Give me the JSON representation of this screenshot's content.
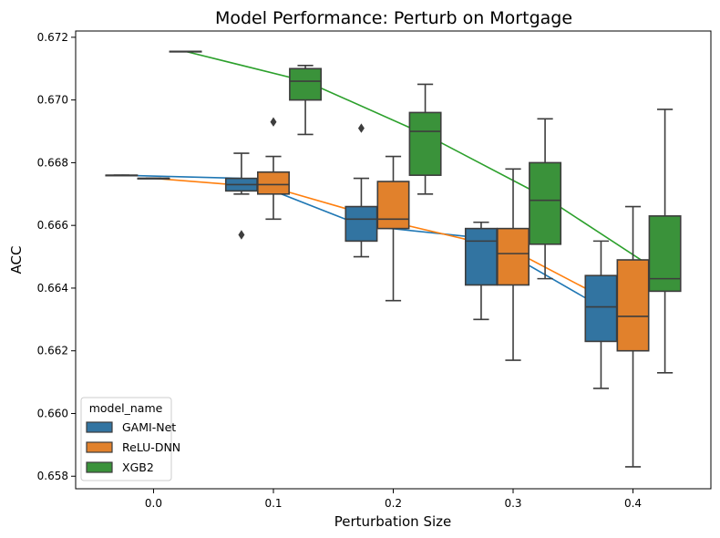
{
  "chart_data": {
    "type": "box",
    "title": "Model Performance: Perturb on Mortgage",
    "xlabel": "Perturbation Size",
    "ylabel": "ACC",
    "categories": [
      "0.0",
      "0.1",
      "0.2",
      "0.3",
      "0.4"
    ],
    "ylim": [
      0.6576,
      0.6722
    ],
    "yticks": [
      "0.658",
      "0.660",
      "0.662",
      "0.664",
      "0.666",
      "0.668",
      "0.670",
      "0.672"
    ],
    "legend": {
      "title": "model_name",
      "placement": "lower-left"
    },
    "series": [
      {
        "name": "GAMI-Net",
        "color": "#3274a1",
        "line_color": "#1f77b4",
        "boxes": [
          {
            "whislo": 0.6676,
            "q1": 0.6676,
            "med": 0.6676,
            "q3": 0.6676,
            "whishi": 0.6676,
            "fliers": []
          },
          {
            "whislo": 0.667,
            "q1": 0.6671,
            "med": 0.6673,
            "q3": 0.6675,
            "whishi": 0.6683,
            "fliers": [
              0.6657
            ]
          },
          {
            "whislo": 0.665,
            "q1": 0.6655,
            "med": 0.6662,
            "q3": 0.6666,
            "whishi": 0.6675,
            "fliers": [
              0.6691
            ]
          },
          {
            "whislo": 0.663,
            "q1": 0.6641,
            "med": 0.6655,
            "q3": 0.6659,
            "whishi": 0.6661,
            "fliers": []
          },
          {
            "whislo": 0.6608,
            "q1": 0.6623,
            "med": 0.6634,
            "q3": 0.6644,
            "whishi": 0.6655,
            "fliers": []
          }
        ],
        "mean_line": [
          0.6676,
          0.6675,
          0.666,
          0.6656,
          0.6634
        ]
      },
      {
        "name": "ReLU-DNN",
        "color": "#e1812c",
        "line_color": "#ff7f0e",
        "boxes": [
          {
            "whislo": 0.6675,
            "q1": 0.6675,
            "med": 0.6675,
            "q3": 0.6675,
            "whishi": 0.6675,
            "fliers": []
          },
          {
            "whislo": 0.6662,
            "q1": 0.667,
            "med": 0.6673,
            "q3": 0.6677,
            "whishi": 0.6682,
            "fliers": [
              0.6693
            ]
          },
          {
            "whislo": 0.6636,
            "q1": 0.6659,
            "med": 0.6662,
            "q3": 0.6674,
            "whishi": 0.6682,
            "fliers": []
          },
          {
            "whislo": 0.6617,
            "q1": 0.6641,
            "med": 0.6651,
            "q3": 0.6659,
            "whishi": 0.6678,
            "fliers": []
          },
          {
            "whislo": 0.6583,
            "q1": 0.662,
            "med": 0.6631,
            "q3": 0.6649,
            "whishi": 0.6666,
            "fliers": []
          }
        ],
        "mean_line": [
          0.6675,
          0.6672,
          0.6661,
          0.6652,
          0.6632
        ]
      },
      {
        "name": "XGB2",
        "color": "#3a923a",
        "line_color": "#2ca02c",
        "boxes": [
          {
            "whislo": 0.67155,
            "q1": 0.67155,
            "med": 0.67155,
            "q3": 0.67155,
            "whishi": 0.67155,
            "fliers": []
          },
          {
            "whislo": 0.6689,
            "q1": 0.67,
            "med": 0.6706,
            "q3": 0.671,
            "whishi": 0.6711,
            "fliers": []
          },
          {
            "whislo": 0.667,
            "q1": 0.6676,
            "med": 0.669,
            "q3": 0.6696,
            "whishi": 0.6705,
            "fliers": []
          },
          {
            "whislo": 0.6643,
            "q1": 0.6654,
            "med": 0.6668,
            "q3": 0.668,
            "whishi": 0.6694,
            "fliers": []
          },
          {
            "whislo": 0.6613,
            "q1": 0.6639,
            "med": 0.6643,
            "q3": 0.6663,
            "whishi": 0.6697,
            "fliers": []
          }
        ],
        "mean_line": [
          0.67155,
          0.6706,
          0.6689,
          0.6669,
          0.6644
        ]
      }
    ]
  }
}
